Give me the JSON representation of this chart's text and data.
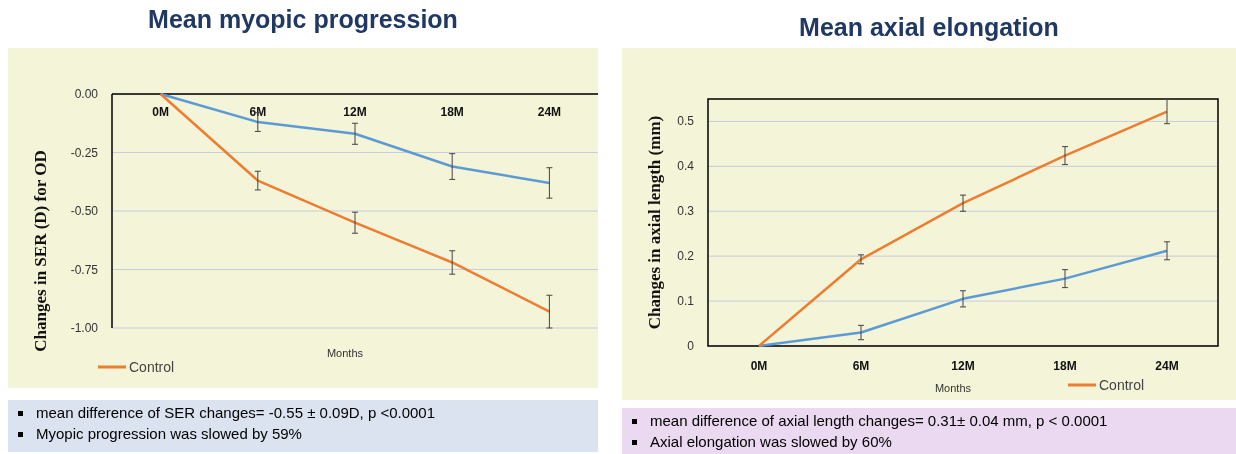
{
  "chart_data": [
    {
      "type": "line",
      "title": "Mean myopic progression",
      "ylabel": "Changes in SER (D) for OD",
      "xlabel": "Months",
      "categories": [
        "0M",
        "6M",
        "12M",
        "18M",
        "24M"
      ],
      "ylim": [
        -1,
        0
      ],
      "yticks": [
        {
          "value": -1,
          "label": "-1.00"
        },
        {
          "value": -0.75,
          "label": "-0.75"
        },
        {
          "value": -0.5,
          "label": "-0.50"
        },
        {
          "value": -0.25,
          "label": "-0.25"
        },
        {
          "value": 0,
          "label": "0.00"
        }
      ],
      "grid": "y",
      "legend": "bottom left",
      "series": [
        {
          "color": "#5b9bd5",
          "values": [
            0,
            -0.12,
            -0.17,
            -0.31,
            -0.38
          ],
          "errors": [
            null,
            0.04,
            0.045,
            0.055,
            0.065
          ]
        },
        {
          "name": "Control",
          "color": "#ed7d31",
          "values": [
            0,
            -0.37,
            -0.55,
            -0.72,
            -0.93
          ],
          "errors": [
            null,
            0.04,
            0.045,
            0.05,
            0.07
          ]
        }
      ],
      "annotations": [
        "mean difference of SER changes= -0.55 ± 0.09D, p <0.0001",
        "Myopic progression was slowed by 59%"
      ]
    },
    {
      "type": "line",
      "title": "Mean axial elongation",
      "ylabel": "Changes in axial length (mm)",
      "xlabel": "Months",
      "categories": [
        "0M",
        "6M",
        "12M",
        "18M",
        "24M"
      ],
      "ylim": [
        0,
        0.55
      ],
      "yticks": [
        0,
        0.1,
        0.2,
        0.3,
        0.4,
        0.5
      ],
      "grid": "y",
      "legend": "bottom right",
      "series": [
        {
          "color": "#5b9bd5",
          "values": [
            0,
            0.03,
            0.105,
            0.15,
            0.212
          ],
          "errors": [
            null,
            0.016,
            0.018,
            0.02,
            0.02
          ]
        },
        {
          "name": "Control",
          "color": "#ed7d31",
          "values": [
            0,
            0.193,
            0.318,
            0.424,
            0.522
          ],
          "errors": [
            null,
            0.01,
            0.018,
            0.02,
            0.027
          ]
        }
      ],
      "annotations": [
        "mean difference of axial length changes= 0.31± 0.04 mm, p < 0.0001",
        "Axial elongation was slowed by 60%"
      ]
    }
  ]
}
